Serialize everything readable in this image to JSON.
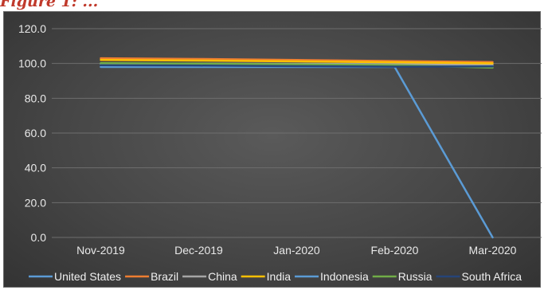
{
  "header": {
    "text": "Figure 1: ..."
  },
  "chart_data": {
    "type": "line",
    "title": "",
    "xlabel": "",
    "ylabel": "",
    "categories": [
      "Nov-2019",
      "Dec-2019",
      "Jan-2020",
      "Feb-2020",
      "Mar-2020"
    ],
    "y_ticks": [
      "0.0",
      "20.0",
      "40.0",
      "60.0",
      "80.0",
      "100.0",
      "120.0"
    ],
    "ylim": [
      0,
      120
    ],
    "grid": true,
    "legend_position": "bottom",
    "series": [
      {
        "name": "United States",
        "color": "#5b9bd5",
        "values": [
          99.5,
          99.3,
          99.1,
          98.9,
          98.6
        ]
      },
      {
        "name": "Brazil",
        "color": "#ed7d31",
        "values": [
          103.0,
          102.6,
          102.0,
          101.4,
          100.8
        ]
      },
      {
        "name": "China",
        "color": "#a5a5a5",
        "values": [
          100.0,
          99.9,
          99.8,
          99.6,
          99.4
        ]
      },
      {
        "name": "India",
        "color": "#ffc000",
        "values": [
          102.0,
          101.7,
          101.2,
          100.7,
          100.1
        ]
      },
      {
        "name": "Indonesia",
        "color": "#5b9bd5",
        "values": [
          98.0,
          98.0,
          98.0,
          98.0,
          0.0
        ]
      },
      {
        "name": "Russia",
        "color": "#70ad47",
        "values": [
          100.2,
          99.9,
          99.5,
          99.0,
          97.6
        ]
      },
      {
        "name": "South Africa",
        "color": "#264478",
        "values": [
          99.0,
          98.8,
          98.5,
          98.2,
          98.3
        ]
      }
    ]
  }
}
